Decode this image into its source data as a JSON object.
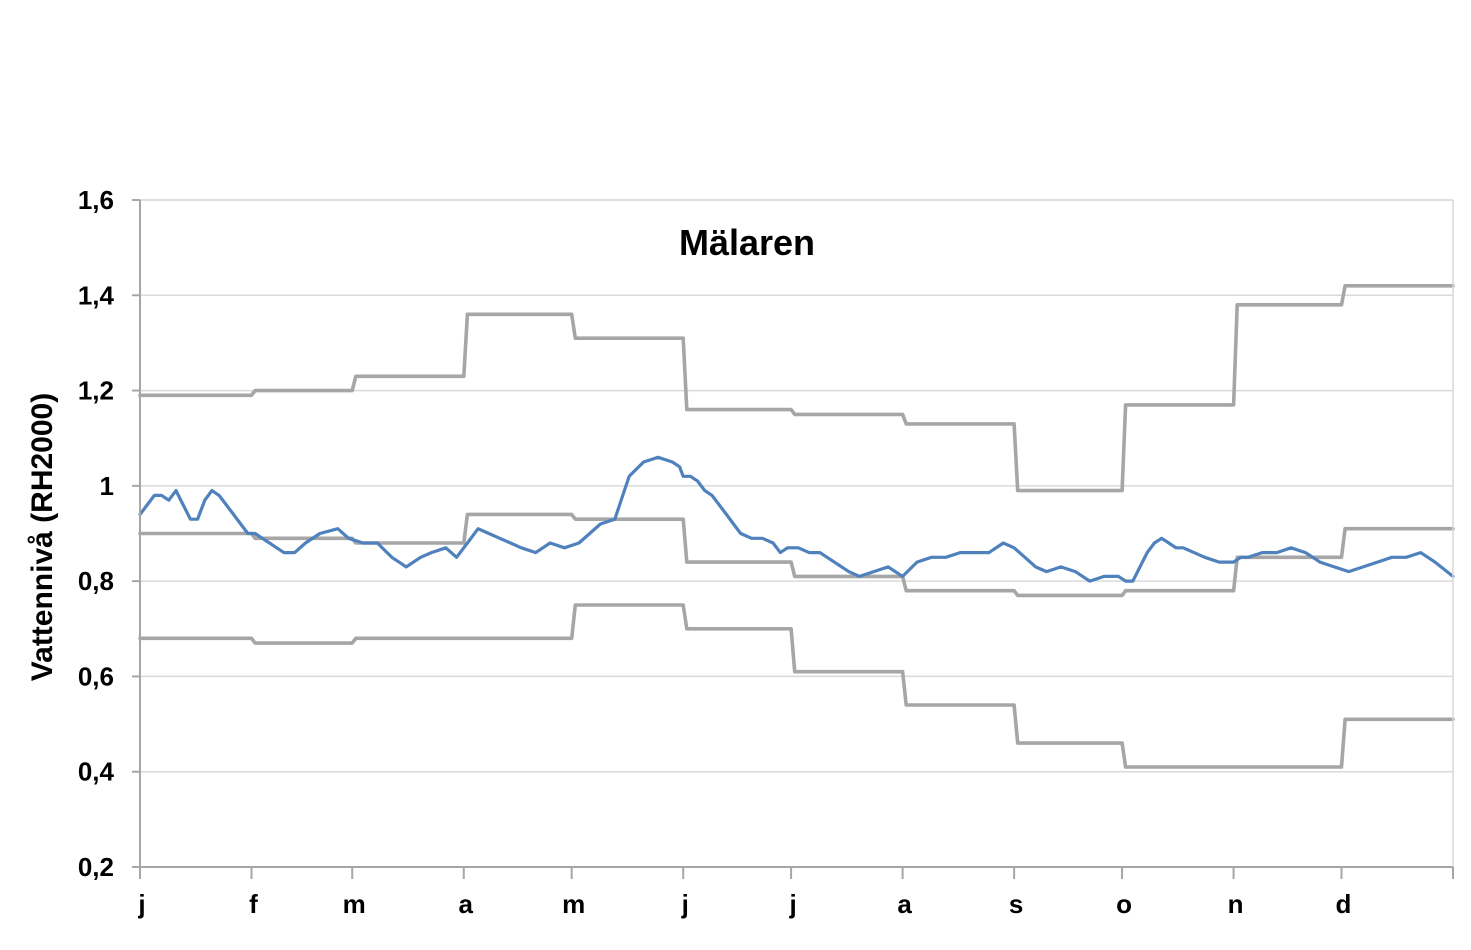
{
  "chart_data": {
    "type": "line",
    "title": "Mälaren",
    "xlabel": "",
    "ylabel": "Vattennivå (RH2000)",
    "ylim": [
      0.2,
      1.6
    ],
    "xlim": [
      0,
      365
    ],
    "yticks": [
      "0,2",
      "0,4",
      "0,6",
      "0,8",
      "1",
      "1,2",
      "1,4",
      "1,6"
    ],
    "ytick_values": [
      0.2,
      0.4,
      0.6,
      0.8,
      1.0,
      1.2,
      1.4,
      1.6
    ],
    "month_labels": [
      "j",
      "f",
      "m",
      "a",
      "m",
      "j",
      "j",
      "a",
      "s",
      "o",
      "n",
      "d"
    ],
    "month_starts": [
      0,
      31,
      59,
      90,
      120,
      151,
      181,
      212,
      243,
      273,
      304,
      334
    ],
    "grid": true,
    "legend": "none",
    "colors": {
      "observed": "#4f81bd",
      "reference": "#a6a6a6",
      "grid": "#d9d9d9",
      "axis": "#a6a6a6"
    },
    "series": [
      {
        "role": "observed",
        "x": [
          0,
          2,
          4,
          6,
          8,
          10,
          12,
          14,
          16,
          18,
          20,
          22,
          24,
          26,
          28,
          30,
          32,
          34,
          36,
          38,
          40,
          43,
          46,
          50,
          55,
          58,
          62,
          66,
          70,
          72,
          74,
          78,
          81,
          85,
          88,
          91,
          94,
          97,
          100,
          103,
          106,
          110,
          114,
          118,
          122,
          125,
          128,
          132,
          136,
          140,
          144,
          148,
          150,
          151,
          153,
          155,
          157,
          159,
          161,
          163,
          165,
          167,
          170,
          173,
          176,
          178,
          180,
          183,
          186,
          189,
          193,
          197,
          200,
          204,
          208,
          212,
          216,
          220,
          224,
          228,
          232,
          236,
          240,
          243,
          246,
          249,
          252,
          256,
          260,
          264,
          268,
          272,
          274,
          276,
          278,
          280,
          282,
          284,
          286,
          288,
          290,
          293,
          296,
          300,
          304,
          306,
          308,
          312,
          316,
          320,
          324,
          328,
          332,
          336,
          340,
          344,
          348,
          352,
          356,
          360,
          365
        ],
        "y": [
          0.94,
          0.96,
          0.98,
          0.98,
          0.97,
          0.99,
          0.96,
          0.93,
          0.93,
          0.97,
          0.99,
          0.98,
          0.96,
          0.94,
          0.92,
          0.9,
          0.9,
          0.89,
          0.88,
          0.87,
          0.86,
          0.86,
          0.88,
          0.9,
          0.91,
          0.89,
          0.88,
          0.88,
          0.85,
          0.84,
          0.83,
          0.85,
          0.86,
          0.87,
          0.85,
          0.88,
          0.91,
          0.9,
          0.89,
          0.88,
          0.87,
          0.86,
          0.88,
          0.87,
          0.88,
          0.9,
          0.92,
          0.93,
          1.02,
          1.05,
          1.06,
          1.05,
          1.04,
          1.02,
          1.02,
          1.01,
          0.99,
          0.98,
          0.96,
          0.94,
          0.92,
          0.9,
          0.89,
          0.89,
          0.88,
          0.86,
          0.87,
          0.87,
          0.86,
          0.86,
          0.84,
          0.82,
          0.81,
          0.82,
          0.83,
          0.81,
          0.84,
          0.85,
          0.85,
          0.86,
          0.86,
          0.86,
          0.88,
          0.87,
          0.85,
          0.83,
          0.82,
          0.83,
          0.82,
          0.8,
          0.81,
          0.81,
          0.8,
          0.8,
          0.83,
          0.86,
          0.88,
          0.89,
          0.88,
          0.87,
          0.87,
          0.86,
          0.85,
          0.84,
          0.84,
          0.85,
          0.85,
          0.86,
          0.86,
          0.87,
          0.86,
          0.84,
          0.83,
          0.82,
          0.83,
          0.84,
          0.85,
          0.85,
          0.86,
          0.84,
          0.81
        ]
      },
      {
        "role": "reference",
        "x": [
          0,
          31,
          32,
          59,
          60,
          90,
          91,
          120,
          121,
          151,
          152,
          181,
          182,
          212,
          213,
          243,
          244,
          273,
          274,
          304,
          305,
          334,
          335,
          365
        ],
        "y": [
          1.19,
          1.19,
          1.2,
          1.2,
          1.23,
          1.23,
          1.36,
          1.36,
          1.31,
          1.31,
          1.16,
          1.16,
          1.15,
          1.15,
          1.13,
          1.13,
          0.99,
          0.99,
          1.17,
          1.17,
          1.38,
          1.38,
          1.42,
          1.42
        ]
      },
      {
        "role": "reference",
        "x": [
          0,
          31,
          32,
          59,
          60,
          90,
          91,
          120,
          121,
          151,
          152,
          181,
          182,
          212,
          213,
          243,
          244,
          273,
          274,
          304,
          305,
          334,
          335,
          365
        ],
        "y": [
          0.9,
          0.9,
          0.89,
          0.89,
          0.88,
          0.88,
          0.94,
          0.94,
          0.93,
          0.93,
          0.84,
          0.84,
          0.81,
          0.81,
          0.78,
          0.78,
          0.77,
          0.77,
          0.78,
          0.78,
          0.85,
          0.85,
          0.91,
          0.91
        ]
      },
      {
        "role": "reference",
        "x": [
          0,
          31,
          32,
          59,
          60,
          90,
          91,
          120,
          121,
          151,
          152,
          181,
          182,
          212,
          213,
          243,
          244,
          273,
          274,
          304,
          305,
          334,
          335,
          365
        ],
        "y": [
          0.68,
          0.68,
          0.67,
          0.67,
          0.68,
          0.68,
          0.68,
          0.68,
          0.75,
          0.75,
          0.7,
          0.7,
          0.61,
          0.61,
          0.54,
          0.54,
          0.46,
          0.46,
          0.41,
          0.41,
          0.41,
          0.41,
          0.51,
          0.51
        ]
      }
    ]
  }
}
